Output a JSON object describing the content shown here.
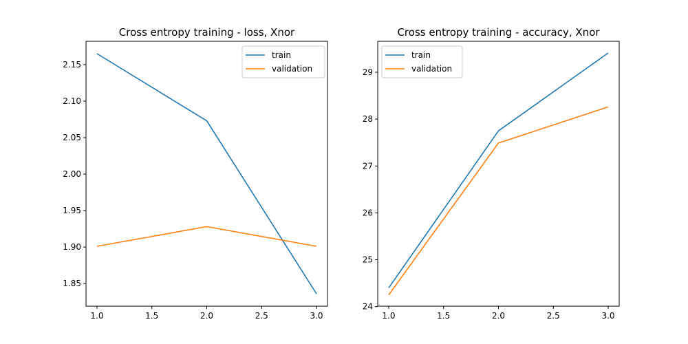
{
  "chart_data": [
    {
      "type": "line",
      "title": "Cross entropy training - loss, Xnor",
      "xlabel": "",
      "ylabel": "",
      "xlim": [
        0.9,
        3.1
      ],
      "ylim": [
        1.819,
        2.182
      ],
      "xticks": [
        1.0,
        1.5,
        2.0,
        2.5,
        3.0
      ],
      "xtick_labels": [
        "1.0",
        "1.5",
        "2.0",
        "2.5",
        "3.0"
      ],
      "yticks": [
        1.85,
        1.9,
        1.95,
        2.0,
        2.05,
        2.1,
        2.15
      ],
      "ytick_labels": [
        "1.85",
        "1.90",
        "1.95",
        "2.00",
        "2.05",
        "2.10",
        "2.15"
      ],
      "grid": false,
      "legend": "upper right",
      "x": [
        1.0,
        2.0,
        3.0
      ],
      "series": [
        {
          "name": "train",
          "color": "#1f77b4",
          "values": [
            2.165,
            2.073,
            1.836
          ]
        },
        {
          "name": "validation",
          "color": "#ff7f0e",
          "values": [
            1.901,
            1.928,
            1.901
          ]
        }
      ]
    },
    {
      "type": "line",
      "title": "Cross entropy training - accuracy, Xnor",
      "xlabel": "",
      "ylabel": "",
      "xlim": [
        0.9,
        3.1
      ],
      "ylim": [
        24.01,
        29.66
      ],
      "xticks": [
        1.0,
        1.5,
        2.0,
        2.5,
        3.0
      ],
      "xtick_labels": [
        "1.0",
        "1.5",
        "2.0",
        "2.5",
        "3.0"
      ],
      "yticks": [
        24,
        25,
        26,
        27,
        28,
        29
      ],
      "ytick_labels": [
        "24",
        "25",
        "26",
        "27",
        "28",
        "29"
      ],
      "grid": false,
      "legend": "upper left",
      "x": [
        1.0,
        2.0,
        3.0
      ],
      "series": [
        {
          "name": "train",
          "color": "#1f77b4",
          "values": [
            24.4,
            27.75,
            29.41
          ]
        },
        {
          "name": "validation",
          "color": "#ff7f0e",
          "values": [
            24.25,
            27.49,
            28.26
          ]
        }
      ]
    }
  ]
}
